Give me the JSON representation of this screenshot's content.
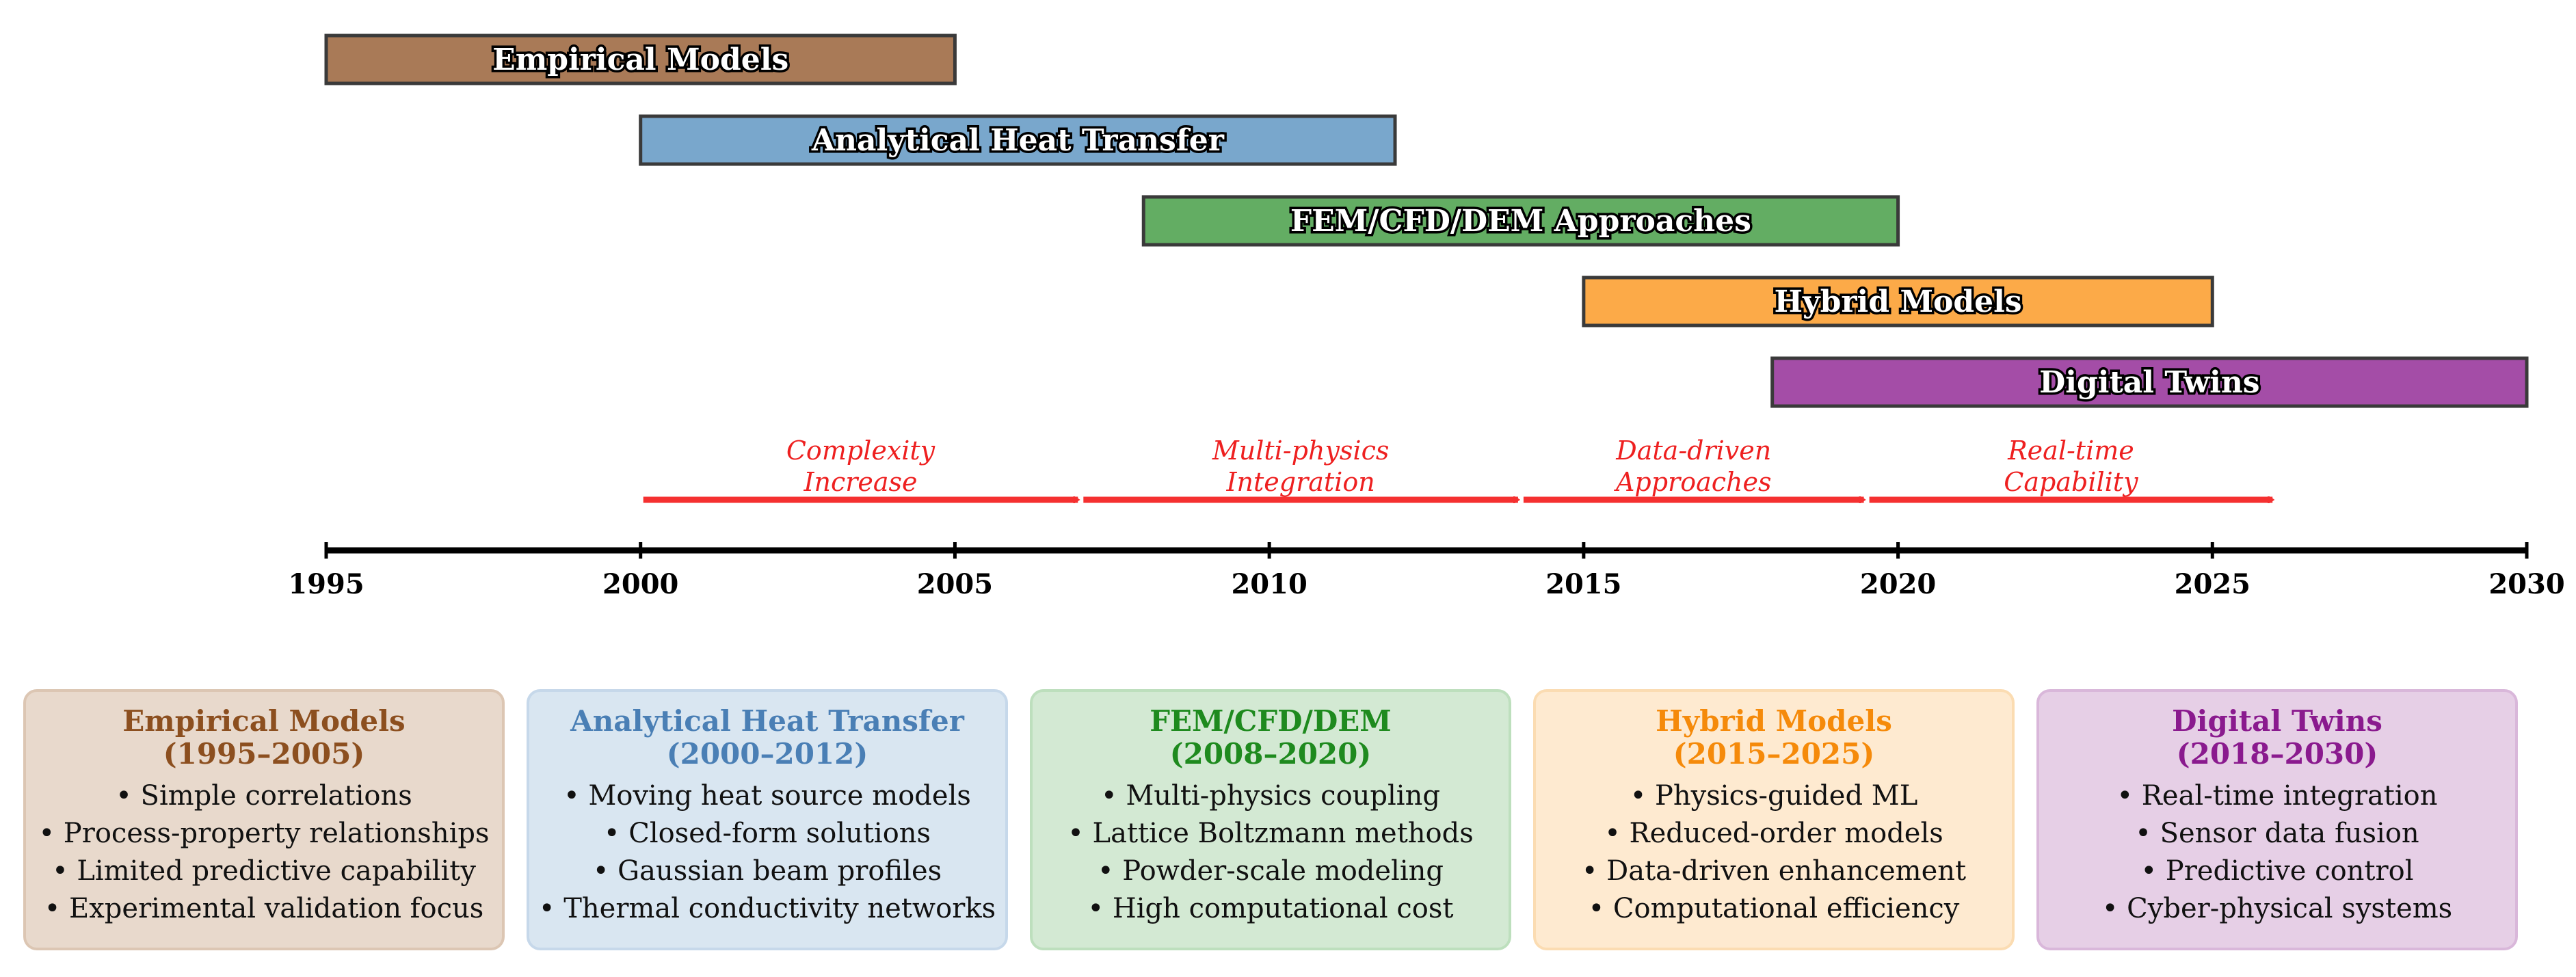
{
  "timeline": {
    "axis_start": 1995,
    "axis_end": 2030,
    "ticks": [
      "1995",
      "2000",
      "2005",
      "2010",
      "2015",
      "2020",
      "2025",
      "2030"
    ],
    "tick_years": [
      1995,
      2000,
      2005,
      2010,
      2015,
      2020,
      2025,
      2030
    ]
  },
  "bars": [
    {
      "label": "Empirical Models",
      "start": 1995,
      "end": 2005,
      "color": "#a97a57"
    },
    {
      "label": "Analytical Heat Transfer",
      "start": 2000,
      "end": 2012,
      "color": "#79a7cc"
    },
    {
      "label": "FEM/CFD/DEM Approaches",
      "start": 2008,
      "end": 2020,
      "color": "#63ad63"
    },
    {
      "label": "Hybrid Models",
      "start": 2015,
      "end": 2025,
      "color": "#fcaa48"
    },
    {
      "label": "Digital Twins",
      "start": 2018,
      "end": 2030,
      "color": "#a44da7"
    }
  ],
  "arrows": [
    {
      "line1": "Complexity",
      "line2": "Increase",
      "from": 2000,
      "to": 2007
    },
    {
      "line1": "Multi-physics",
      "line2": "Integration",
      "from": 2007,
      "to": 2014
    },
    {
      "line1": "Data-driven",
      "line2": "Approaches",
      "from": 2014,
      "to": 2019.5
    },
    {
      "line1": "Real-time",
      "line2": "Capability",
      "from": 2019.5,
      "to": 2026
    }
  ],
  "cards": [
    {
      "title": "Empirical Models",
      "period": "(1995–2005)",
      "title_color": "#8c4f1f",
      "bg": "#e8d9cc",
      "border": "#dcc6b3",
      "items": [
        "• Simple correlations",
        "• Process-property relationships",
        "• Limited predictive capability",
        "• Experimental validation focus"
      ]
    },
    {
      "title": "Analytical Heat Transfer",
      "period": "(2000–2012)",
      "title_color": "#4a7fb5",
      "bg": "#d9e6f1",
      "border": "#c6d8ea",
      "items": [
        "• Moving heat source models",
        "• Closed-form solutions",
        "• Gaussian beam profiles",
        "• Thermal conductivity networks"
      ]
    },
    {
      "title": "FEM/CFD/DEM",
      "period": "(2008–2020)",
      "title_color": "#1e8a1e",
      "bg": "#d3e9d3",
      "border": "#bddfbd",
      "items": [
        "• Multi-physics coupling",
        "• Lattice Boltzmann methods",
        "• Powder-scale modeling",
        "• High computational cost"
      ]
    },
    {
      "title": "Hybrid Models",
      "period": "(2015–2025)",
      "title_color": "#f58a0a",
      "bg": "#feead0",
      "border": "#fbdcb2",
      "items": [
        "• Physics-guided ML",
        "• Reduced-order models",
        "• Data-driven enhancement",
        "• Computational efficiency"
      ]
    },
    {
      "title": "Digital Twins",
      "period": "(2018–2030)",
      "title_color": "#8a1a8e",
      "bg": "#e6cfe6",
      "border": "#d9b7da",
      "items": [
        "• Real-time integration",
        "• Sensor data fusion",
        "• Predictive control",
        "• Cyber-physical systems"
      ]
    }
  ]
}
